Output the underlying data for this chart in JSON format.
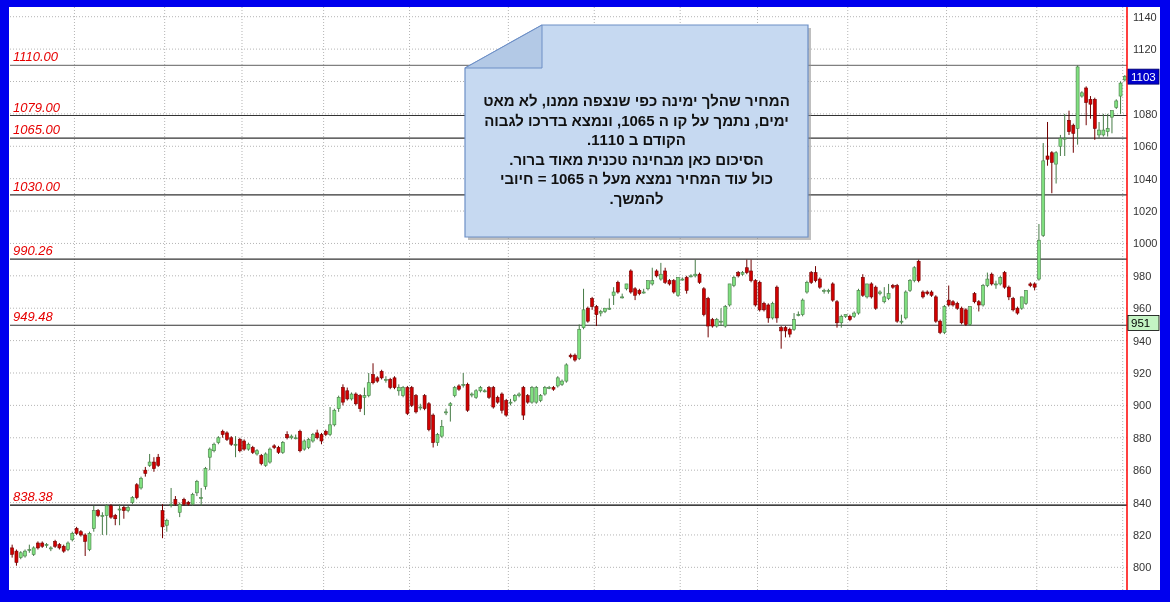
{
  "chart_data": {
    "type": "candlestick",
    "categories": [
      null,
      null,
      null,
      null,
      null,
      null,
      null,
      null,
      null,
      null,
      null,
      null,
      null,
      null,
      null,
      null,
      null,
      null,
      null,
      null,
      null,
      null,
      null,
      null,
      null,
      null,
      null,
      null,
      null,
      null,
      null,
      null,
      null,
      null,
      null,
      null,
      null,
      null,
      null,
      null,
      null,
      null,
      null,
      null,
      null,
      null,
      null,
      null,
      null,
      null,
      null,
      null,
      null,
      null,
      null,
      null,
      null,
      null,
      null,
      null,
      null,
      null,
      null,
      null,
      null,
      null,
      null,
      null,
      null,
      null,
      null,
      null,
      null,
      null,
      null,
      null,
      null,
      null,
      null,
      null,
      null,
      null,
      null,
      null,
      null,
      null,
      null,
      null,
      null,
      null,
      null,
      null,
      null,
      null,
      null,
      null,
      null,
      null,
      null,
      null,
      null,
      null,
      null,
      null,
      null,
      null,
      null,
      null,
      null,
      null,
      null,
      null,
      null,
      null,
      null,
      null,
      null,
      null,
      null,
      null,
      null,
      null,
      null,
      null,
      null,
      null,
      null,
      null,
      null,
      null,
      null,
      null,
      null,
      null,
      null,
      null,
      null,
      null,
      null,
      null,
      null,
      null,
      null,
      null,
      null,
      null,
      null,
      null,
      null,
      null,
      null,
      null,
      null,
      null,
      null,
      null,
      null,
      null,
      null,
      null,
      null,
      null,
      null,
      null,
      null,
      null,
      null,
      null,
      null,
      null,
      null,
      null,
      null,
      null,
      null,
      null,
      null,
      null,
      null,
      null,
      null,
      null,
      null,
      null,
      null,
      null,
      null,
      null,
      null,
      null,
      null,
      null,
      null,
      null,
      null,
      null,
      null,
      null,
      null,
      null,
      null,
      null,
      null,
      null,
      null,
      null,
      null,
      null,
      null,
      null,
      null,
      null,
      null,
      null,
      null,
      null,
      null,
      null,
      null,
      null,
      null,
      null,
      null,
      null,
      null,
      null,
      null,
      null,
      null,
      null,
      null,
      null,
      null,
      null,
      null,
      null,
      null,
      null,
      null,
      null,
      null,
      null,
      null,
      null,
      null,
      null,
      null,
      null,
      null,
      null,
      null,
      null,
      null,
      null,
      null,
      null,
      null,
      null,
      null,
      null
    ],
    "ohlc": [
      [
        812,
        814,
        806,
        808
      ],
      [
        810,
        811,
        801,
        803
      ],
      [
        806,
        810,
        805,
        809
      ],
      [
        807,
        811,
        806,
        810
      ],
      [
        811,
        814,
        809,
        811
      ],
      [
        808,
        813,
        807,
        812
      ],
      [
        815,
        816,
        811,
        812
      ],
      [
        815,
        816,
        812,
        813
      ],
      [
        814,
        815,
        812,
        814
      ],
      [
        812,
        813,
        810,
        812
      ],
      [
        816,
        817,
        812,
        813
      ],
      [
        814,
        815,
        811,
        812
      ],
      [
        813,
        814,
        809,
        810
      ],
      [
        811,
        816,
        810,
        815
      ],
      [
        817,
        822,
        816,
        821
      ],
      [
        824,
        825,
        820,
        821
      ],
      [
        822,
        823,
        819,
        820
      ],
      [
        820,
        821,
        807,
        816
      ],
      [
        811,
        822,
        810,
        821
      ],
      [
        824,
        838,
        822,
        835
      ],
      [
        835,
        836,
        831,
        832
      ],
      [
        832,
        834,
        820,
        832
      ],
      [
        832,
        839,
        820,
        838
      ],
      [
        838,
        839,
        830,
        831
      ],
      [
        832,
        833,
        826,
        830
      ],
      [
        836,
        839,
        826,
        836
      ],
      [
        837,
        838,
        830,
        835
      ],
      [
        835,
        838,
        834,
        837
      ],
      [
        840,
        844,
        839,
        843
      ],
      [
        851,
        852,
        842,
        843
      ],
      [
        849,
        856,
        848,
        855
      ],
      [
        860,
        862,
        856,
        858
      ],
      [
        863,
        870,
        862,
        865
      ],
      [
        865,
        868,
        859,
        861
      ],
      [
        868,
        870,
        862,
        863
      ],
      [
        835,
        839,
        818,
        825
      ],
      [
        826,
        830,
        822,
        829
      ],
      [
        839,
        849,
        837,
        839
      ],
      [
        842,
        844,
        838,
        839
      ],
      [
        834,
        840,
        831,
        839
      ],
      [
        842,
        843,
        838,
        839
      ],
      [
        840,
        841,
        838,
        839
      ],
      [
        839,
        846,
        838,
        845
      ],
      [
        846,
        854,
        844,
        853
      ],
      [
        843,
        849,
        838,
        843
      ],
      [
        850,
        862,
        848,
        861
      ],
      [
        868,
        874,
        860,
        873
      ],
      [
        872,
        877,
        871,
        876
      ],
      [
        877,
        881,
        876,
        880
      ],
      [
        884,
        885,
        880,
        882
      ],
      [
        883,
        884,
        878,
        879
      ],
      [
        880,
        881,
        875,
        876
      ],
      [
        876,
        881,
        868,
        876
      ],
      [
        879,
        880,
        871,
        872
      ],
      [
        878,
        879,
        872,
        873
      ],
      [
        873,
        877,
        872,
        876
      ],
      [
        874,
        875,
        870,
        871
      ],
      [
        870,
        873,
        869,
        872
      ],
      [
        869,
        870,
        863,
        864
      ],
      [
        863,
        871,
        862,
        870
      ],
      [
        865,
        874,
        864,
        873
      ],
      [
        875,
        876,
        873,
        874
      ],
      [
        874,
        875,
        870,
        871
      ],
      [
        871,
        878,
        870,
        877
      ],
      [
        882,
        884,
        879,
        880
      ],
      [
        880,
        882,
        879,
        881
      ],
      [
        880,
        882,
        879,
        880
      ],
      [
        884,
        885,
        871,
        872
      ],
      [
        873,
        879,
        872,
        878
      ],
      [
        874,
        880,
        873,
        879
      ],
      [
        878,
        883,
        877,
        882
      ],
      [
        883,
        885,
        879,
        880
      ],
      [
        882,
        883,
        876,
        878
      ],
      [
        884,
        885,
        881,
        882
      ],
      [
        882,
        899,
        881,
        888
      ],
      [
        888,
        898,
        887,
        897
      ],
      [
        898,
        906,
        896,
        905
      ],
      [
        911,
        913,
        900,
        902
      ],
      [
        909,
        911,
        903,
        904
      ],
      [
        904,
        908,
        903,
        907
      ],
      [
        907,
        908,
        900,
        901
      ],
      [
        906,
        907,
        896,
        898
      ],
      [
        905,
        911,
        894,
        906
      ],
      [
        906,
        920,
        905,
        914
      ],
      [
        919,
        926,
        913,
        914
      ],
      [
        917,
        918,
        914,
        915
      ],
      [
        921,
        922,
        916,
        917
      ],
      [
        916,
        918,
        914,
        916
      ],
      [
        916,
        917,
        910,
        911
      ],
      [
        917,
        918,
        910,
        911
      ],
      [
        909,
        913,
        906,
        911
      ],
      [
        906,
        912,
        905,
        911
      ],
      [
        911,
        912,
        894,
        895
      ],
      [
        911,
        912,
        899,
        900
      ],
      [
        906,
        907,
        895,
        896
      ],
      [
        899,
        901,
        897,
        899
      ],
      [
        906,
        907,
        897,
        898
      ],
      [
        901,
        902,
        884,
        885
      ],
      [
        894,
        895,
        874,
        877
      ],
      [
        877,
        883,
        875,
        882
      ],
      [
        881,
        891,
        880,
        887
      ],
      [
        896,
        898,
        894,
        896
      ],
      [
        900,
        902,
        890,
        901
      ],
      [
        906,
        912,
        905,
        911
      ],
      [
        912,
        913,
        909,
        910
      ],
      [
        913,
        920,
        911,
        913
      ],
      [
        913,
        914,
        896,
        897
      ],
      [
        907,
        908,
        905,
        907
      ],
      [
        905,
        910,
        904,
        909
      ],
      [
        909,
        912,
        908,
        911
      ],
      [
        909,
        910,
        908,
        909
      ],
      [
        911,
        912,
        904,
        905
      ],
      [
        911,
        912,
        898,
        899
      ],
      [
        905,
        906,
        901,
        902
      ],
      [
        907,
        908,
        895,
        897
      ],
      [
        903,
        904,
        893,
        894
      ],
      [
        902,
        904,
        900,
        902
      ],
      [
        903,
        907,
        902,
        906
      ],
      [
        906,
        908,
        905,
        907
      ],
      [
        911,
        912,
        891,
        894
      ],
      [
        906,
        907,
        901,
        902
      ],
      [
        902,
        912,
        901,
        911
      ],
      [
        902,
        912,
        901,
        911
      ],
      [
        903,
        907,
        902,
        906
      ],
      [
        907,
        912,
        906,
        911
      ],
      [
        911,
        912,
        910,
        911
      ],
      [
        911,
        912,
        909,
        910
      ],
      [
        912,
        918,
        911,
        917
      ],
      [
        913,
        916,
        912,
        915
      ],
      [
        915,
        926,
        914,
        925
      ],
      [
        931,
        932,
        929,
        930
      ],
      [
        931,
        932,
        927,
        928
      ],
      [
        929,
        950,
        928,
        947
      ],
      [
        948,
        972,
        947,
        959
      ],
      [
        960,
        961,
        951,
        952
      ],
      [
        966,
        967,
        959,
        961
      ],
      [
        961,
        962,
        949,
        956
      ],
      [
        957,
        959,
        955,
        958
      ],
      [
        958,
        960,
        957,
        960
      ],
      [
        960,
        966,
        959,
        960
      ],
      [
        968,
        973,
        962,
        970
      ],
      [
        976,
        977,
        969,
        970
      ],
      [
        967,
        969,
        966,
        967
      ],
      [
        972,
        975,
        971,
        975
      ],
      [
        983,
        984,
        969,
        970
      ],
      [
        972,
        973,
        965,
        968
      ],
      [
        971,
        972,
        968,
        969
      ],
      [
        970,
        972,
        969,
        970
      ],
      [
        972,
        977,
        971,
        977
      ],
      [
        975,
        985,
        974,
        977
      ],
      [
        983,
        984,
        979,
        980
      ],
      [
        978,
        988,
        977,
        981
      ],
      [
        983,
        985,
        975,
        976
      ],
      [
        977,
        978,
        974,
        975
      ],
      [
        977,
        978,
        969,
        970
      ],
      [
        968,
        979,
        967,
        979
      ],
      [
        978,
        979,
        977,
        978
      ],
      [
        979,
        980,
        969,
        971
      ],
      [
        980,
        981,
        979,
        980
      ],
      [
        980,
        990,
        979,
        981
      ],
      [
        981,
        982,
        975,
        976
      ],
      [
        972,
        973,
        955,
        956
      ],
      [
        966,
        967,
        942,
        949
      ],
      [
        953,
        954,
        948,
        949
      ],
      [
        949,
        954,
        948,
        953
      ],
      [
        952,
        960,
        949,
        952
      ],
      [
        949,
        962,
        948,
        961
      ],
      [
        962,
        975,
        961,
        975
      ],
      [
        974,
        980,
        973,
        979
      ],
      [
        982,
        983,
        979,
        980
      ],
      [
        981,
        983,
        980,
        982
      ],
      [
        985,
        990,
        981,
        982
      ],
      [
        983,
        990,
        976,
        977
      ],
      [
        977,
        978,
        961,
        962
      ],
      [
        976,
        977,
        958,
        959
      ],
      [
        963,
        964,
        958,
        959
      ],
      [
        962,
        963,
        951,
        954
      ],
      [
        954,
        964,
        953,
        963
      ],
      [
        973,
        974,
        951,
        954
      ],
      [
        948,
        949,
        935,
        946
      ],
      [
        948,
        949,
        942,
        946
      ],
      [
        947,
        948,
        942,
        944
      ],
      [
        947,
        957,
        946,
        953
      ],
      [
        956,
        958,
        955,
        956
      ],
      [
        956,
        966,
        955,
        965
      ],
      [
        970,
        977,
        969,
        976
      ],
      [
        982,
        983,
        975,
        976
      ],
      [
        982,
        986,
        976,
        977
      ],
      [
        978,
        979,
        972,
        973
      ],
      [
        971,
        972,
        969,
        971
      ],
      [
        971,
        972,
        969,
        971
      ],
      [
        975,
        976,
        964,
        965
      ],
      [
        964,
        965,
        948,
        951
      ],
      [
        951,
        956,
        948,
        955
      ],
      [
        955,
        956,
        954,
        956
      ],
      [
        955,
        956,
        952,
        953
      ],
      [
        955,
        958,
        954,
        957
      ],
      [
        957,
        972,
        956,
        971
      ],
      [
        979,
        981,
        967,
        968
      ],
      [
        967,
        975,
        966,
        975
      ],
      [
        975,
        976,
        966,
        967
      ],
      [
        973,
        974,
        959,
        960
      ],
      [
        969,
        971,
        968,
        970
      ],
      [
        964,
        973,
        963,
        967
      ],
      [
        966,
        975,
        965,
        969
      ],
      [
        974,
        975,
        972,
        973
      ],
      [
        974,
        975,
        951,
        952
      ],
      [
        952,
        956,
        950,
        952
      ],
      [
        954,
        971,
        953,
        970
      ],
      [
        971,
        978,
        970,
        977
      ],
      [
        977,
        986,
        976,
        985
      ],
      [
        989,
        990,
        976,
        977
      ],
      [
        970,
        971,
        966,
        967
      ],
      [
        970,
        971,
        968,
        969
      ],
      [
        970,
        971,
        967,
        968
      ],
      [
        967,
        968,
        951,
        952
      ],
      [
        952,
        953,
        944,
        945
      ],
      [
        945,
        962,
        944,
        961
      ],
      [
        965,
        974,
        961,
        962
      ],
      [
        964,
        965,
        961,
        962
      ],
      [
        963,
        964,
        959,
        960
      ],
      [
        960,
        961,
        950,
        951
      ],
      [
        959,
        960,
        949,
        950
      ],
      [
        950,
        961,
        949,
        961
      ],
      [
        969,
        970,
        963,
        964
      ],
      [
        964,
        965,
        958,
        962
      ],
      [
        962,
        975,
        961,
        974
      ],
      [
        974,
        982,
        973,
        978
      ],
      [
        981,
        982,
        974,
        975
      ],
      [
        975,
        977,
        972,
        975
      ],
      [
        975,
        980,
        974,
        979
      ],
      [
        982,
        983,
        972,
        973
      ],
      [
        973,
        974,
        965,
        967
      ],
      [
        966,
        967,
        958,
        959
      ],
      [
        960,
        961,
        956,
        957
      ],
      [
        960,
        967,
        959,
        967
      ],
      [
        963,
        971,
        962,
        971
      ],
      [
        975,
        976,
        973,
        974
      ],
      [
        975,
        976,
        971,
        973
      ],
      [
        978,
        1012,
        977,
        1002
      ],
      [
        1005,
        1062,
        1004,
        1051
      ],
      [
        1054,
        1075,
        1048,
        1052
      ],
      [
        1056,
        1057,
        1031,
        1050
      ],
      [
        1049,
        1057,
        1037,
        1056
      ],
      [
        1060,
        1067,
        1054,
        1065
      ],
      [
        1065,
        1080,
        1054,
        1065
      ],
      [
        1076,
        1082,
        1067,
        1069
      ],
      [
        1073,
        1074,
        1056,
        1068
      ],
      [
        1071,
        1110,
        1061,
        1109
      ],
      [
        1091,
        1094,
        1090,
        1093
      ],
      [
        1096,
        1097,
        1073,
        1087
      ],
      [
        1089,
        1091,
        1077,
        1086
      ],
      [
        1089,
        1090,
        1064,
        1071
      ],
      [
        1067,
        1075,
        1065,
        1070
      ],
      [
        1067,
        1080,
        1066,
        1070
      ],
      [
        1069,
        1080,
        1066,
        1071
      ],
      [
        1078,
        1082,
        1068,
        1082
      ],
      [
        1084,
        1089,
        1083,
        1088
      ],
      [
        1091,
        1100,
        1080,
        1099
      ],
      [
        1101,
        1104,
        1100,
        1103
      ]
    ],
    "colors": [
      "#d00000",
      "#d00000",
      "#80e080",
      "#80e080",
      "#80e080",
      "#80e080",
      "#d00000",
      "#d00000",
      "#80e080",
      "#80e080",
      "#d00000",
      "#d00000",
      "#d00000",
      "#80e080",
      "#80e080",
      "#d00000",
      "#d00000",
      "#d00000",
      "#80e080",
      "#80e080",
      "#d00000",
      "#80e080",
      "#80e080",
      "#d00000",
      "#d00000",
      "#80e080",
      "#d00000",
      "#80e080",
      "#80e080",
      "#d00000",
      "#80e080",
      "#d00000",
      "#80e080",
      "#d00000",
      "#d00000",
      "#d00000",
      "#80e080",
      "#80e080",
      "#d00000",
      "#80e080",
      "#d00000",
      "#d00000",
      "#80e080",
      "#80e080",
      "#80e080",
      "#80e080",
      "#80e080",
      "#80e080",
      "#80e080",
      "#d00000",
      "#d00000",
      "#d00000",
      "#80e080",
      "#d00000",
      "#d00000",
      "#80e080",
      "#d00000",
      "#80e080",
      "#d00000",
      "#80e080",
      "#80e080",
      "#d00000",
      "#d00000",
      "#80e080",
      "#d00000",
      "#80e080",
      "#80e080",
      "#d00000",
      "#80e080",
      "#80e080",
      "#80e080",
      "#d00000",
      "#d00000",
      "#d00000",
      "#80e080",
      "#80e080",
      "#80e080",
      "#d00000",
      "#d00000",
      "#80e080",
      "#d00000",
      "#d00000",
      "#80e080",
      "#80e080",
      "#d00000",
      "#d00000",
      "#d00000",
      "#80e080",
      "#d00000",
      "#d00000",
      "#80e080",
      "#80e080",
      "#d00000",
      "#d00000",
      "#d00000",
      "#80e080",
      "#d00000",
      "#d00000",
      "#d00000",
      "#80e080",
      "#80e080",
      "#80e080",
      "#80e080",
      "#80e080",
      "#d00000",
      "#80e080",
      "#d00000",
      "#80e080",
      "#80e080",
      "#80e080",
      "#80e080",
      "#d00000",
      "#d00000",
      "#d00000",
      "#d00000",
      "#d00000",
      "#80e080",
      "#80e080",
      "#80e080",
      "#d00000",
      "#d00000",
      "#80e080",
      "#80e080",
      "#80e080",
      "#80e080",
      "#80e080",
      "#d00000",
      "#80e080",
      "#80e080",
      "#80e080",
      "#d00000",
      "#d00000",
      "#80e080",
      "#80e080",
      "#d00000",
      "#d00000",
      "#d00000",
      "#80e080",
      "#80e080",
      "#80e080",
      "#80e080",
      "#d00000",
      "#80e080",
      "#80e080",
      "#d00000",
      "#d00000",
      "#d00000",
      "#80e080",
      "#80e080",
      "#80e080",
      "#d00000",
      "#80e080",
      "#d00000",
      "#d00000",
      "#d00000",
      "#80e080",
      "#80e080",
      "#d00000",
      "#80e080",
      "#80e080",
      "#d00000",
      "#d00000",
      "#d00000",
      "#d00000",
      "#80e080",
      "#80e080",
      "#80e080",
      "#80e080",
      "#80e080",
      "#d00000",
      "#80e080",
      "#d00000",
      "#d00000",
      "#d00000",
      "#d00000",
      "#d00000",
      "#d00000",
      "#80e080",
      "#d00000",
      "#d00000",
      "#d00000",
      "#d00000",
      "#80e080",
      "#80e080",
      "#80e080",
      "#80e080",
      "#d00000",
      "#d00000",
      "#d00000",
      "#80e080",
      "#80e080",
      "#d00000",
      "#d00000",
      "#80e080",
      "#80e080",
      "#d00000",
      "#80e080",
      "#80e080",
      "#d00000",
      "#80e080",
      "#d00000",
      "#d00000",
      "#80e080",
      "#80e080",
      "#80e080",
      "#d00000",
      "#d00000",
      "#80e080",
      "#80e080",
      "#80e080",
      "#80e080",
      "#d00000",
      "#d00000",
      "#d00000",
      "#d00000",
      "#d00000",
      "#d00000",
      "#80e080",
      "#d00000",
      "#d00000",
      "#d00000",
      "#d00000",
      "#d00000",
      "#80e080",
      "#d00000",
      "#d00000",
      "#80e080",
      "#80e080",
      "#d00000",
      "#80e080",
      "#80e080",
      "#d00000",
      "#d00000",
      "#d00000",
      "#d00000",
      "#80e080",
      "#80e080",
      "#d00000",
      "#d00000",
      "#80e080",
      "#80e080",
      "#d00000",
      "#d00000",
      "#80e080",
      "#80e080",
      "#80e080",
      "#d00000",
      "#d00000",
      "#80e080",
      "#80e080",
      "#d00000",
      "#d00000",
      "#d00000",
      "#80e080",
      "#80e080",
      "#80e080",
      "#80e080",
      "#80e080",
      "#80e080",
      "#80e080"
    ],
    "ylim": [
      786,
      1146
    ],
    "yticks": [
      800,
      820,
      840,
      860,
      880,
      900,
      920,
      940,
      960,
      980,
      1000,
      1020,
      1040,
      1060,
      1080,
      {
        "value": 1100,
        "label": null
      },
      1120,
      1140
    ],
    "grid": true,
    "ref_lines": [
      {
        "axis": "y",
        "value": 1110,
        "label": "1110.00",
        "color": "#808080"
      },
      {
        "axis": "y",
        "value": 1079,
        "label": "1079.00",
        "color": "#333333"
      },
      {
        "axis": "y",
        "value": 1065,
        "label": "1065.00",
        "color": "#333333"
      },
      {
        "axis": "y",
        "value": 1030,
        "label": "1030.00",
        "color": "#333333"
      },
      {
        "axis": "y",
        "value": 990.26,
        "label": "990.26",
        "color": "#333333"
      },
      {
        "axis": "y",
        "value": 949.48,
        "label": "949.48",
        "color": "#333333"
      },
      {
        "axis": "y",
        "value": 838.38,
        "label": "838.38",
        "color": "#000000"
      }
    ],
    "annotations": [
      "המחיר שהלך ימינה כפי שנצפה ממנו, לא מאט ימים, נתמך על קו ה 1065, ונמצא בדרכו לגבוה הקודם ב 1110.\nהסיכום כאן מבחינה טכנית מאוד ברור.\nכול עוד המחיר נמצא מעל ה 1065 = חיובי להמשך.",
      {
        "text": "1103",
        "y": 1103
      },
      "951"
    ]
  }
}
